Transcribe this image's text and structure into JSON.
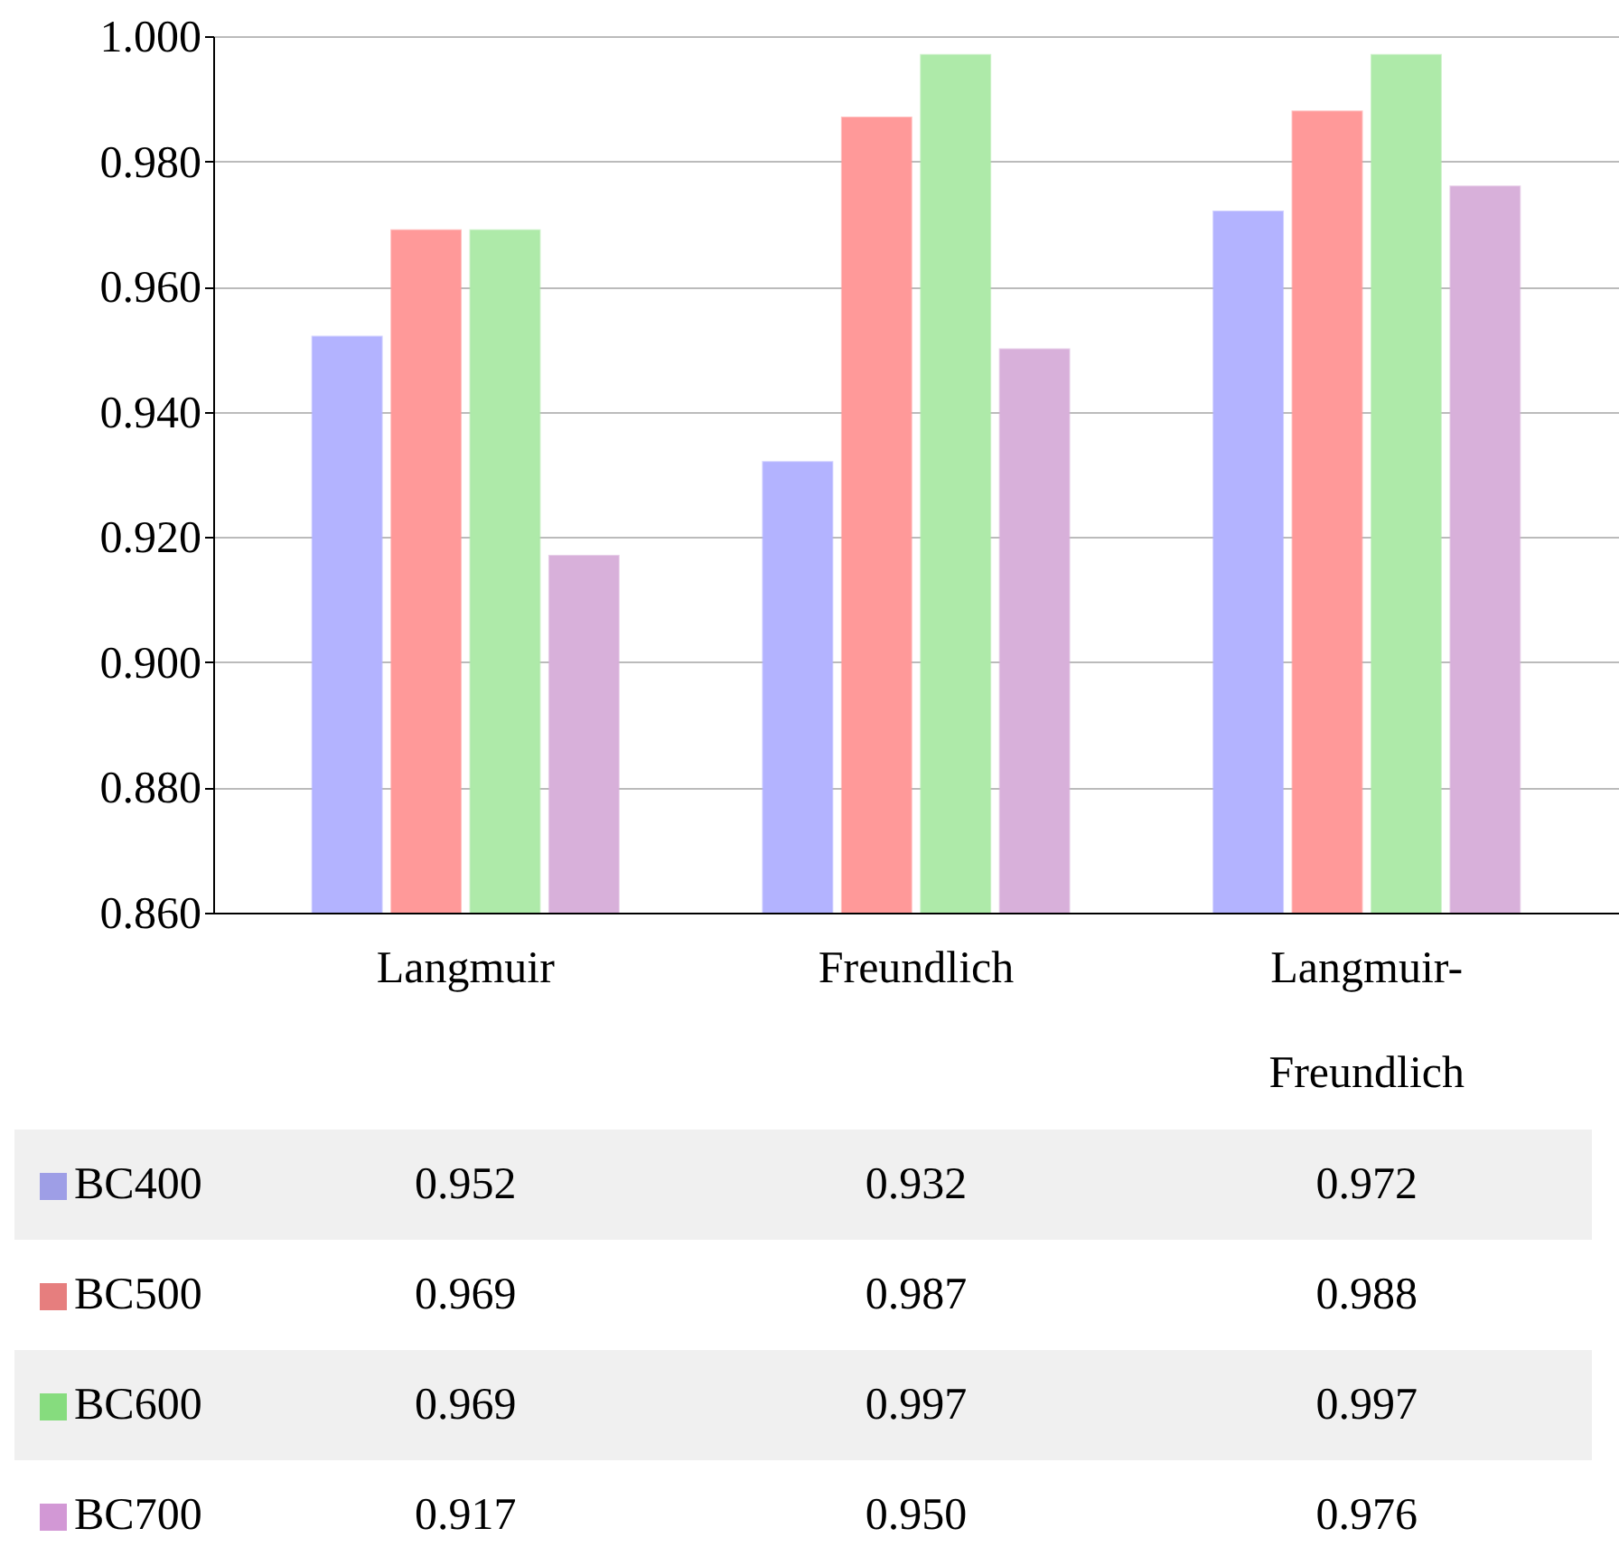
{
  "chart_data": {
    "type": "bar",
    "categories": [
      "Langmuir",
      "Freundlich",
      "Langmuir-Freundlich"
    ],
    "series": [
      {
        "name": "BC400",
        "color": "#b3b3ff",
        "values": [
          0.952,
          0.932,
          0.972
        ],
        "value_labels": [
          "0.952",
          "0.932",
          "0.972"
        ]
      },
      {
        "name": "BC500",
        "color": "#ff9999",
        "values": [
          0.969,
          0.987,
          0.988
        ],
        "value_labels": [
          "0.969",
          "0.987",
          "0.988"
        ]
      },
      {
        "name": "BC600",
        "color": "#aeeaa9",
        "values": [
          0.969,
          0.997,
          0.997
        ],
        "value_labels": [
          "0.969",
          "0.997",
          "0.997"
        ]
      },
      {
        "name": "BC700",
        "color": "#d8b0da",
        "values": [
          0.917,
          0.95,
          0.976
        ],
        "value_labels": [
          "0.917",
          "0.950",
          "0.976"
        ]
      }
    ],
    "ylim": [
      0.86,
      1.0
    ],
    "yticks": [
      {
        "value": 0.86,
        "label": "0.860"
      },
      {
        "value": 0.88,
        "label": "0.880"
      },
      {
        "value": 0.9,
        "label": "0.900"
      },
      {
        "value": 0.92,
        "label": "0.920"
      },
      {
        "value": 0.94,
        "label": "0.940"
      },
      {
        "value": 0.96,
        "label": "0.960"
      },
      {
        "value": 0.98,
        "label": "0.980"
      },
      {
        "value": 1.0,
        "label": "1.000"
      }
    ],
    "grid": "y",
    "legend": "bottom"
  }
}
